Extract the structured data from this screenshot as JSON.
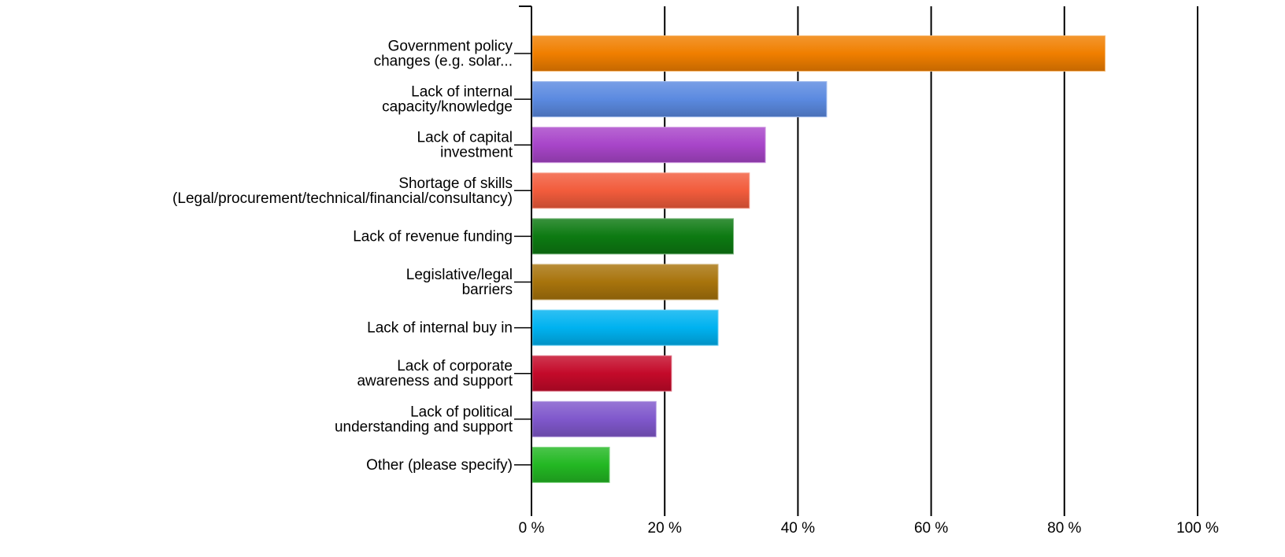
{
  "chart_data": {
    "type": "bar",
    "orientation": "horizontal",
    "categories": [
      [
        "Government policy",
        "changes (e.g. solar..."
      ],
      [
        "Lack of internal",
        "capacity/knowledge"
      ],
      [
        "Lack of capital",
        "investment"
      ],
      [
        "Shortage of skills",
        "(Legal/procurement/technical/financial/consultancy)"
      ],
      [
        "Lack of revenue funding"
      ],
      [
        "Legislative/legal",
        "barriers"
      ],
      [
        "Lack of internal buy in"
      ],
      [
        "Lack of corporate",
        "awareness and support"
      ],
      [
        "Lack of political",
        "understanding and support"
      ],
      [
        "Other (please specify)"
      ]
    ],
    "values": [
      86.0,
      44.2,
      35.0,
      32.6,
      30.2,
      27.9,
      27.9,
      20.9,
      18.6,
      11.6
    ],
    "colors": [
      "#F07F00",
      "#5B8AE0",
      "#A845C9",
      "#F25C3C",
      "#0D7A12",
      "#A8740C",
      "#00B2F0",
      "#C40A2A",
      "#8058CC",
      "#23B823"
    ],
    "xlim": [
      0,
      100
    ],
    "xticks": [
      {
        "value": 0,
        "label": "0 %"
      },
      {
        "value": 20,
        "label": "20 %"
      },
      {
        "value": 40,
        "label": "40 %"
      },
      {
        "value": 60,
        "label": "60 %"
      },
      {
        "value": 80,
        "label": "80 %"
      },
      {
        "value": 100,
        "label": "100 %"
      }
    ],
    "grid": true,
    "title": "",
    "xlabel": "",
    "ylabel": ""
  }
}
